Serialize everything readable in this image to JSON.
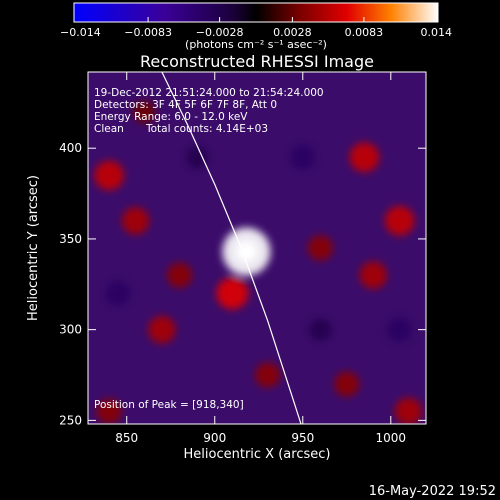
{
  "chart_data": {
    "type": "heatmap",
    "title": "Reconstructed RHESSI Image",
    "xlabel": "Heliocentric X (arcsec)",
    "ylabel": "Heliocentric Y (arcsec)",
    "xlim": [
      828,
      1020
    ],
    "ylim": [
      248,
      442
    ],
    "x_ticks": [
      850,
      900,
      950,
      1000
    ],
    "y_ticks": [
      250,
      300,
      350,
      400
    ],
    "colorbar": {
      "label": "(photons cm⁻² s⁻¹ asec⁻²)",
      "range": [
        -0.014,
        0.014
      ],
      "tick_values": [
        -0.014,
        -0.0083,
        -0.0028,
        0.0028,
        0.0083,
        0.014
      ],
      "tick_labels": [
        "−0.014",
        "−0.0083",
        "−0.0028",
        "0.0028",
        "0.0083",
        "0.014"
      ]
    },
    "annotations": [
      "19-Dec-2012 21:51:24.000 to 21:54:24.000",
      "Detectors: 3F 4F 5F 6F 7F 8F, Att 0",
      "Energy Range: 6.0 - 12.0 keV",
      "Clean",
      "Total counts: 4.14E+03"
    ],
    "peak_label": "Position of Peak = [918,340]",
    "peak": [
      918,
      340
    ],
    "limb_curve": [
      [
        870,
        442
      ],
      [
        885,
        412
      ],
      [
        900,
        380
      ],
      [
        915,
        345
      ],
      [
        930,
        305
      ],
      [
        945,
        260
      ],
      [
        949,
        248
      ]
    ],
    "sources": [
      {
        "x": 918,
        "y": 343,
        "value": 0.014
      },
      {
        "x": 910,
        "y": 320,
        "value": 0.007
      },
      {
        "x": 840,
        "y": 385,
        "value": 0.006
      },
      {
        "x": 855,
        "y": 360,
        "value": 0.005
      },
      {
        "x": 985,
        "y": 395,
        "value": 0.006
      },
      {
        "x": 1005,
        "y": 360,
        "value": 0.006
      },
      {
        "x": 990,
        "y": 330,
        "value": 0.005
      },
      {
        "x": 870,
        "y": 300,
        "value": 0.005
      },
      {
        "x": 960,
        "y": 345,
        "value": 0.004
      },
      {
        "x": 930,
        "y": 275,
        "value": 0.004
      },
      {
        "x": 1010,
        "y": 255,
        "value": 0.005
      },
      {
        "x": 840,
        "y": 255,
        "value": 0.004
      },
      {
        "x": 880,
        "y": 330,
        "value": 0.004
      },
      {
        "x": 975,
        "y": 270,
        "value": 0.004
      },
      {
        "x": 860,
        "y": 420,
        "value": 0.003
      },
      {
        "x": 950,
        "y": 395,
        "value": -0.004
      },
      {
        "x": 890,
        "y": 395,
        "value": -0.003
      },
      {
        "x": 960,
        "y": 300,
        "value": -0.003
      },
      {
        "x": 845,
        "y": 320,
        "value": -0.004
      },
      {
        "x": 1005,
        "y": 300,
        "value": -0.004
      }
    ]
  },
  "footer": {
    "timestamp": "16-May-2022 19:52"
  }
}
